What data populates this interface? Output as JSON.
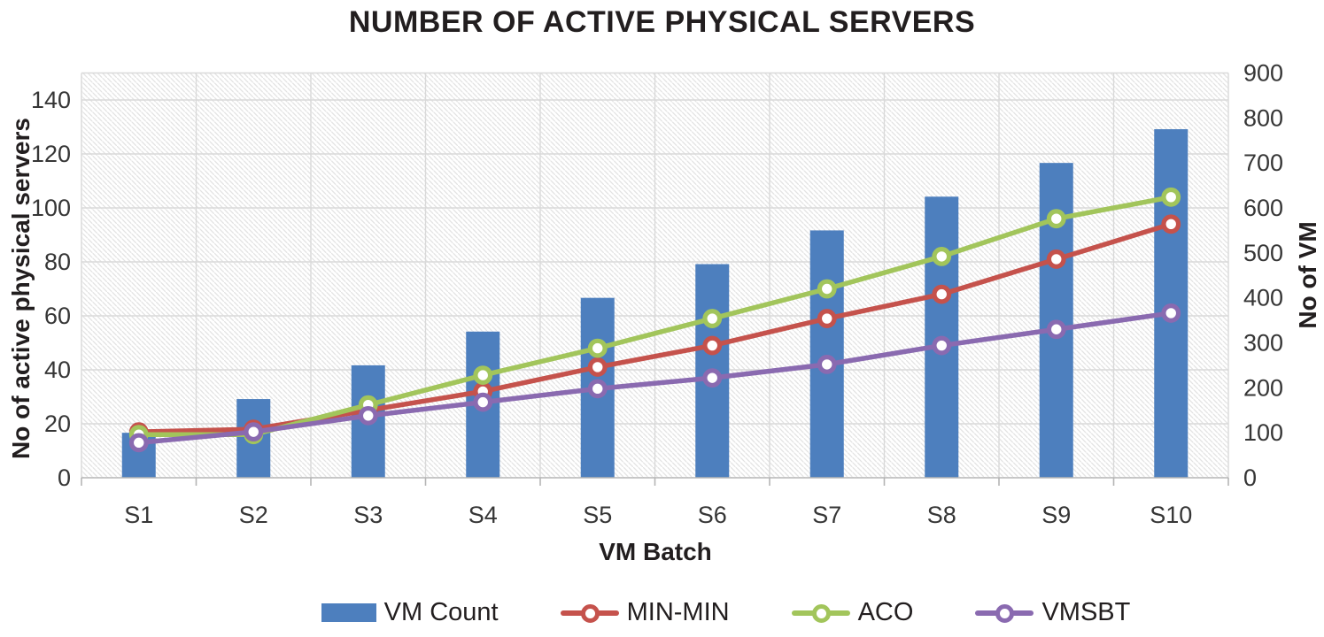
{
  "title": "NUMBER OF ACTIVE PHYSICAL SERVERS",
  "chart_data": {
    "type": "combo-bar-line",
    "categories": [
      "S1",
      "S2",
      "S3",
      "S4",
      "S5",
      "S6",
      "S7",
      "S8",
      "S9",
      "S10"
    ],
    "bar_series": {
      "name": "VM Count",
      "axis": "right",
      "color": "#4d7fbe",
      "values": [
        100,
        175,
        250,
        325,
        400,
        475,
        550,
        625,
        700,
        775
      ]
    },
    "line_series": [
      {
        "name": "MIN-MIN",
        "axis": "left",
        "color": "#c5524c",
        "values": [
          17,
          18,
          25,
          32,
          41,
          49,
          59,
          68,
          81,
          94
        ]
      },
      {
        "name": "ACO",
        "axis": "left",
        "color": "#a2c55b",
        "values": [
          16,
          16,
          27,
          38,
          48,
          59,
          70,
          82,
          96,
          104
        ]
      },
      {
        "name": "VMSBT",
        "axis": "left",
        "color": "#8a6ab0",
        "values": [
          13,
          17,
          23,
          28,
          33,
          37,
          42,
          49,
          55,
          61
        ]
      }
    ],
    "left_axis": {
      "title": "No of active physical servers",
      "min": 0,
      "max": 150,
      "ticks": [
        0,
        20,
        40,
        60,
        80,
        100,
        120,
        140
      ]
    },
    "right_axis": {
      "title": "No of VM",
      "min": 0,
      "max": 900,
      "ticks": [
        0,
        100,
        200,
        300,
        400,
        500,
        600,
        700,
        800,
        900
      ]
    },
    "x_axis": {
      "title": "VM Batch"
    },
    "grid": true,
    "legend_position": "bottom",
    "plot_background": "diagonal-hatch"
  }
}
